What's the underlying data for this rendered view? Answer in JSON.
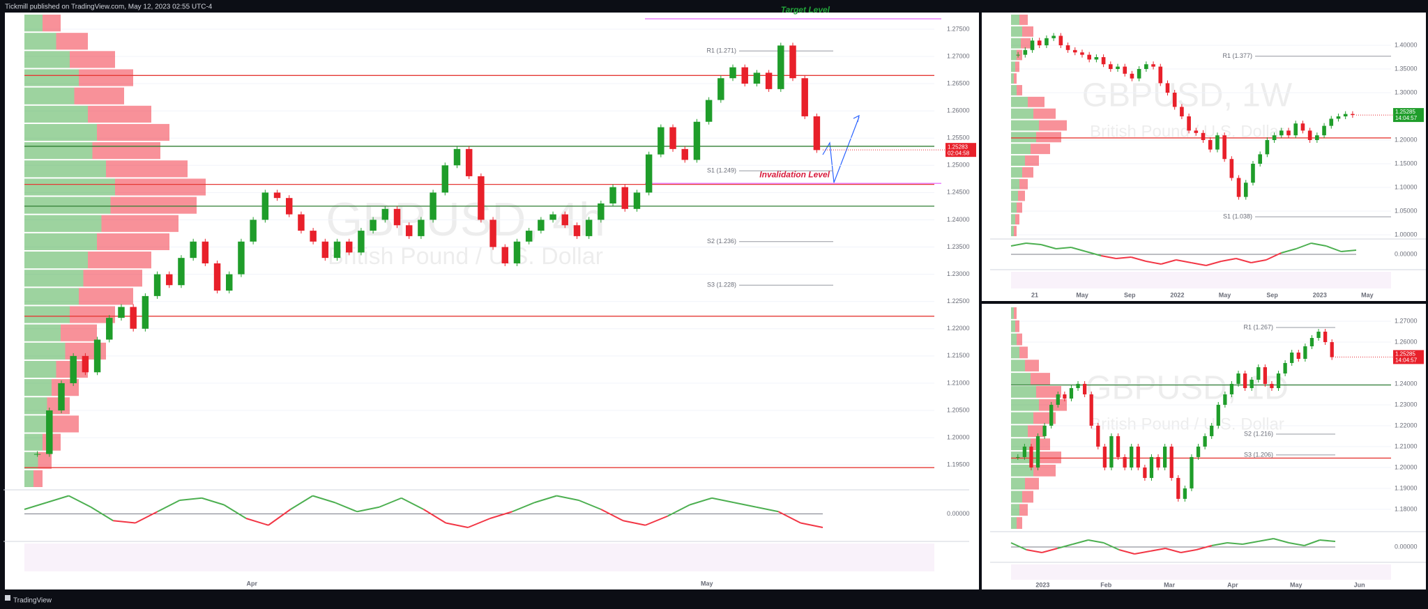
{
  "header": {
    "publisher": "Tickmill published on TradingView.com, May 12, 2023 02:55 UTC-4",
    "brand": "TradingView"
  },
  "panels": [
    {
      "key": "main",
      "watermark": "GBPUSD, 4h",
      "subtitle": "British Pound / U.S. Dollar",
      "ylim": [
        1.1908,
        1.2778
      ],
      "yticks": [
        {
          "value": 1.195,
          "label": "1.19500"
        },
        {
          "value": 1.2,
          "label": "1.20000"
        },
        {
          "value": 1.205,
          "label": "1.20500"
        },
        {
          "value": 1.21,
          "label": "1.21000"
        },
        {
          "value": 1.215,
          "label": "1.21500"
        },
        {
          "value": 1.22,
          "label": "1.22000"
        },
        {
          "value": 1.225,
          "label": "1.22500"
        },
        {
          "value": 1.23,
          "label": "1.23000"
        },
        {
          "value": 1.235,
          "label": "1.23500"
        },
        {
          "value": 1.24,
          "label": "1.24000"
        },
        {
          "value": 1.245,
          "label": "1.24500"
        },
        {
          "value": 1.25,
          "label": "1.25000"
        },
        {
          "value": 1.255,
          "label": "1.25500"
        },
        {
          "value": 1.26,
          "label": "1.26000"
        },
        {
          "value": 1.265,
          "label": "1.26500"
        },
        {
          "value": 1.27,
          "label": "1.27000"
        },
        {
          "value": 1.275,
          "label": "1.27500"
        }
      ],
      "closes": [
        1.197,
        1.205,
        1.21,
        1.215,
        1.212,
        1.218,
        1.222,
        1.224,
        1.22,
        1.226,
        1.23,
        1.228,
        1.233,
        1.236,
        1.232,
        1.227,
        1.23,
        1.236,
        1.24,
        1.245,
        1.244,
        1.241,
        1.238,
        1.236,
        1.233,
        1.236,
        1.234,
        1.238,
        1.24,
        1.242,
        1.239,
        1.237,
        1.24,
        1.245,
        1.25,
        1.253,
        1.248,
        1.24,
        1.235,
        1.232,
        1.236,
        1.238,
        1.24,
        1.241,
        1.239,
        1.237,
        1.24,
        1.243,
        1.246,
        1.242,
        1.245,
        1.252,
        1.257,
        1.253,
        1.251,
        1.258,
        1.262,
        1.266,
        1.268,
        1.265,
        1.267,
        1.264,
        1.272,
        1.266,
        1.259,
        1.2528
      ],
      "levels": [
        {
          "value": 1.2665,
          "color": "#e53935"
        },
        {
          "value": 1.2535,
          "color": "#2e7d32"
        },
        {
          "value": 1.2465,
          "color": "#e53935"
        },
        {
          "value": 1.2425,
          "color": "#2e7d32"
        },
        {
          "value": 1.2223,
          "color": "#e53935"
        },
        {
          "value": 1.1945,
          "color": "#e53935"
        }
      ],
      "pivots": [
        {
          "label": "R1 (1.271)",
          "value": 1.271
        },
        {
          "label": "S1 (1.249)",
          "value": 1.249
        },
        {
          "label": "S2 (1.236)",
          "value": 1.236
        },
        {
          "label": "S3 (1.228)",
          "value": 1.228
        }
      ],
      "annotations": [
        {
          "text": "Target Level",
          "value": 1.2769,
          "color": "#22a33a"
        },
        {
          "text": "Invalidation Level",
          "value": 1.2467,
          "color": "#d81b3c"
        }
      ],
      "last_price": 1.25283,
      "countdown": "02:04:58",
      "x_labels": [
        "Apr",
        "May"
      ],
      "volume_profile": [
        0.2,
        0.35,
        0.5,
        0.6,
        0.55,
        0.7,
        0.8,
        0.75,
        0.9,
        1,
        0.95,
        0.85,
        0.8,
        0.7,
        0.65,
        0.6,
        0.5,
        0.4,
        0.45,
        0.35,
        0.3,
        0.25,
        0.3,
        0.2,
        0.15,
        0.1
      ],
      "momentum": {
        "ylim": [
          -1,
          1
        ],
        "ticks": [
          {
            "value": 0,
            "label": "0.00000"
          }
        ],
        "values": [
          0.2,
          0.5,
          0.8,
          0.3,
          -0.3,
          -0.4,
          0.1,
          0.6,
          0.7,
          0.4,
          -0.2,
          -0.5,
          0.2,
          0.8,
          0.5,
          0.1,
          0.3,
          0.7,
          0.2,
          -0.4,
          -0.6,
          -0.2,
          0.1,
          0.5,
          0.8,
          0.6,
          0.2,
          -0.3,
          -0.5,
          -0.1,
          0.4,
          0.7,
          0.5,
          0.3,
          0.1,
          -0.4,
          -0.6
        ]
      }
    },
    {
      "key": "weekly",
      "watermark": "GBPUSD, 1W",
      "subtitle": "British Pound / U.S. Dollar",
      "ylim": [
        0.9956,
        1.4662
      ],
      "yticks": [
        {
          "value": 1.0,
          "label": "1.00000"
        },
        {
          "value": 1.05,
          "label": "1.05000"
        },
        {
          "value": 1.1,
          "label": "1.10000"
        },
        {
          "value": 1.15,
          "label": "1.15000"
        },
        {
          "value": 1.2,
          "label": "1.20000"
        },
        {
          "value": 1.3,
          "label": "1.30000"
        },
        {
          "value": 1.35,
          "label": "1.35000"
        },
        {
          "value": 1.4,
          "label": "1.40000"
        }
      ],
      "closes": [
        1.38,
        1.39,
        1.41,
        1.4,
        1.415,
        1.42,
        1.4,
        1.39,
        1.385,
        1.38,
        1.37,
        1.375,
        1.36,
        1.35,
        1.355,
        1.34,
        1.33,
        1.35,
        1.36,
        1.355,
        1.32,
        1.3,
        1.27,
        1.25,
        1.22,
        1.215,
        1.2,
        1.18,
        1.21,
        1.16,
        1.12,
        1.08,
        1.11,
        1.15,
        1.17,
        1.2,
        1.21,
        1.22,
        1.21,
        1.235,
        1.22,
        1.2,
        1.21,
        1.23,
        1.245,
        1.25,
        1.255,
        1.2528
      ],
      "levels": [
        {
          "value": 1.2045,
          "color": "#e53935"
        }
      ],
      "pivots": [
        {
          "label": "R1 (1.377)",
          "value": 1.377
        },
        {
          "label": "S1 (1.038)",
          "value": 1.038
        }
      ],
      "annotations": [],
      "last_price": 1.25285,
      "countdown": "14:04:57",
      "x_labels": [
        "21",
        "May",
        "Sep",
        "2022",
        "May",
        "Sep",
        "2023",
        "May"
      ],
      "volume_profile": [
        0.3,
        0.4,
        0.35,
        0.2,
        0.15,
        0.1,
        0.2,
        0.6,
        0.8,
        1,
        0.9,
        0.7,
        0.5,
        0.4,
        0.3,
        0.25,
        0.2,
        0.15,
        0.1
      ],
      "momentum": {
        "ylim": [
          -1,
          1
        ],
        "ticks": [
          {
            "value": 0,
            "label": "0.00000"
          }
        ],
        "values": [
          0.6,
          0.8,
          0.7,
          0.4,
          0.5,
          0.2,
          -0.1,
          -0.3,
          -0.2,
          -0.5,
          -0.7,
          -0.4,
          -0.6,
          -0.8,
          -0.5,
          -0.3,
          -0.6,
          -0.4,
          0.1,
          0.4,
          0.8,
          0.6,
          0.2,
          0.3
        ]
      }
    },
    {
      "key": "daily",
      "watermark": "GBPUSD, 1D",
      "subtitle": "British Pound / U.S. Dollar",
      "ylim": [
        1.1703,
        1.277
      ],
      "yticks": [
        {
          "value": 1.18,
          "label": "1.18000"
        },
        {
          "value": 1.19,
          "label": "1.19000"
        },
        {
          "value": 1.2,
          "label": "1.20000"
        },
        {
          "value": 1.21,
          "label": "1.21000"
        },
        {
          "value": 1.22,
          "label": "1.22000"
        },
        {
          "value": 1.23,
          "label": "1.23000"
        },
        {
          "value": 1.24,
          "label": "1.24000"
        },
        {
          "value": 1.26,
          "label": "1.26000"
        },
        {
          "value": 1.27,
          "label": "1.27000"
        }
      ],
      "closes": [
        1.205,
        1.21,
        1.2,
        1.215,
        1.22,
        1.23,
        1.235,
        1.233,
        1.238,
        1.24,
        1.235,
        1.22,
        1.21,
        1.2,
        1.215,
        1.205,
        1.2,
        1.21,
        1.2,
        1.195,
        1.205,
        1.2,
        1.21,
        1.195,
        1.185,
        1.19,
        1.205,
        1.21,
        1.215,
        1.22,
        1.23,
        1.235,
        1.24,
        1.245,
        1.238,
        1.242,
        1.248,
        1.24,
        1.238,
        1.245,
        1.25,
        1.255,
        1.252,
        1.258,
        1.262,
        1.265,
        1.26,
        1.2528
      ],
      "levels": [
        {
          "value": 1.2045,
          "color": "#e53935"
        },
        {
          "value": 1.2395,
          "color": "#2e7d32"
        }
      ],
      "pivots": [
        {
          "label": "R1 (1.267)",
          "value": 1.267
        },
        {
          "label": "S2 (1.216)",
          "value": 1.216
        },
        {
          "label": "S3 (1.206)",
          "value": 1.206
        }
      ],
      "annotations": [],
      "last_price": 1.25285,
      "countdown": "14:04:57",
      "x_labels": [
        "2023",
        "Feb",
        "Mar",
        "Apr",
        "May",
        "Jun"
      ],
      "volume_profile": [
        0.1,
        0.15,
        0.2,
        0.3,
        0.5,
        0.7,
        0.9,
        1,
        0.8,
        0.6,
        0.7,
        0.9,
        0.8,
        0.5,
        0.4,
        0.3,
        0.2
      ],
      "momentum": {
        "ylim": [
          -1,
          1
        ],
        "ticks": [
          {
            "value": 0,
            "label": "0.00000"
          }
        ],
        "values": [
          0.3,
          -0.2,
          -0.4,
          -0.1,
          0.2,
          0.5,
          0.3,
          -0.2,
          -0.5,
          -0.3,
          -0.1,
          -0.4,
          -0.2,
          0.1,
          0.3,
          0.2,
          0.4,
          0.6,
          0.3,
          0.1,
          0.5,
          0.4
        ]
      }
    }
  ]
}
